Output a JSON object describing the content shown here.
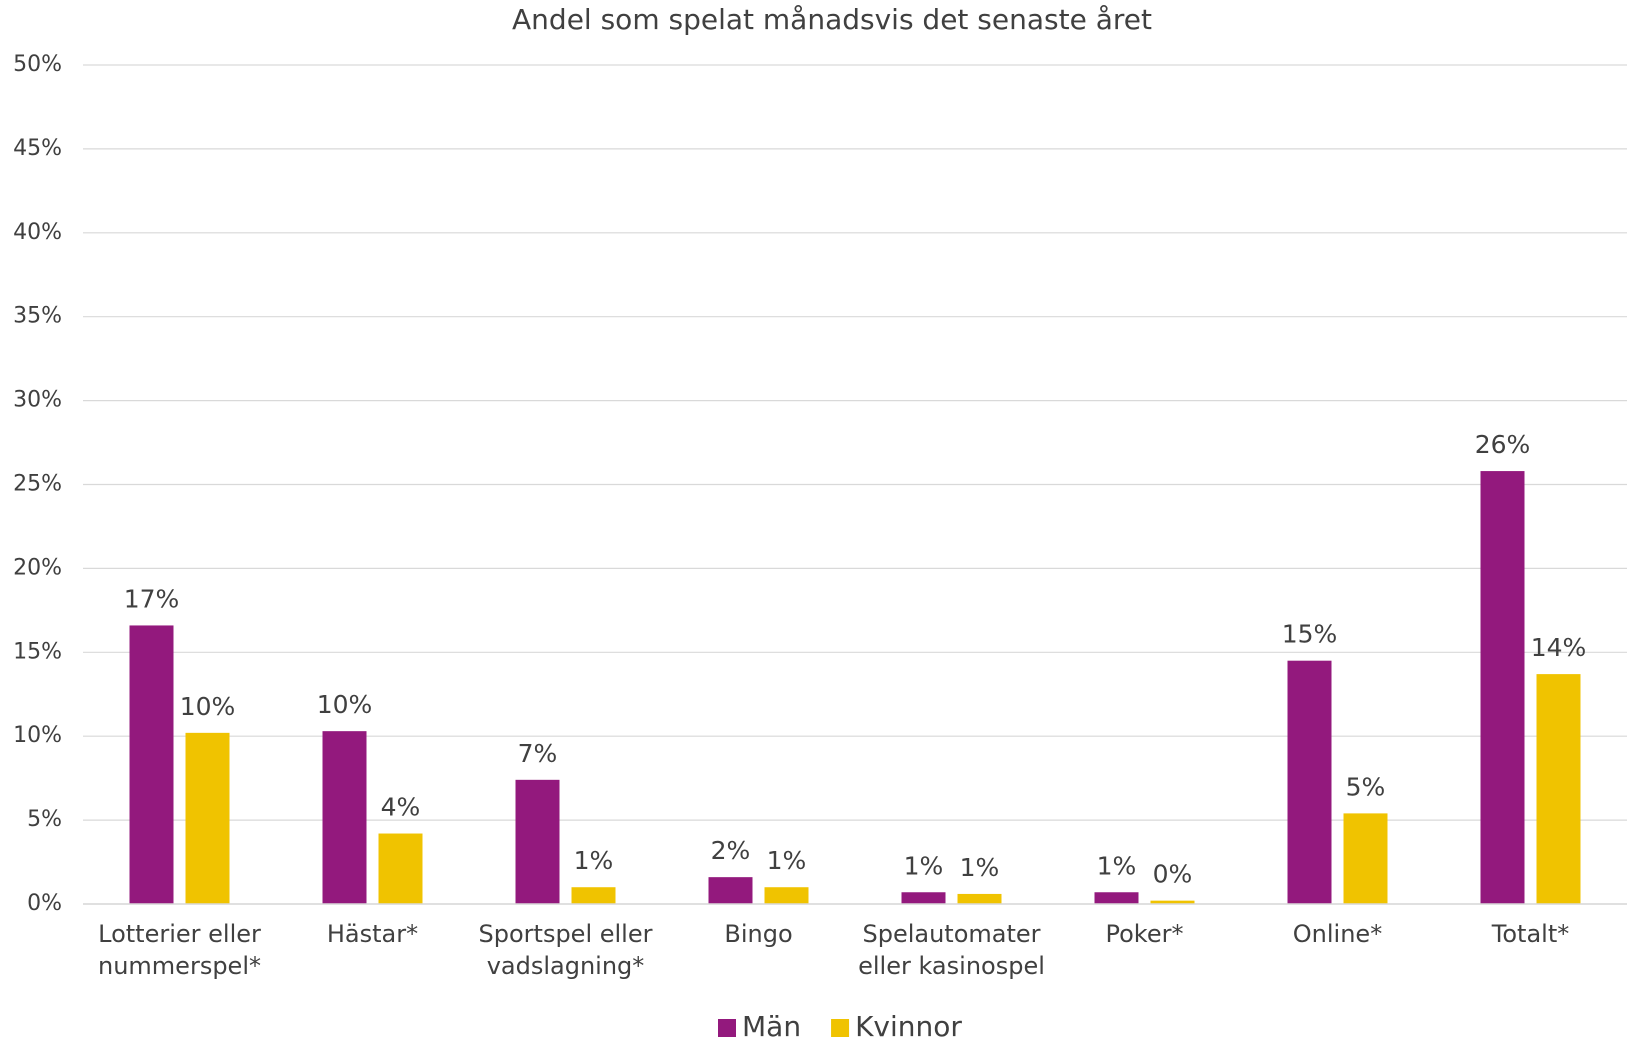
{
  "chart_data": {
    "type": "bar",
    "title": "Andel som spelat månadsvis det senaste året",
    "categories": [
      "Lotterier eller nummerspel*",
      "Hästar*",
      "Sportspel eller vadslagning*",
      "Bingo",
      "Spelautomater eller kasinospel",
      "Poker*",
      "Online*",
      "Totalt*"
    ],
    "series": [
      {
        "name": "Män",
        "color": "#93197d",
        "values": [
          16.6,
          10.3,
          7.4,
          1.6,
          0.7,
          0.7,
          14.5,
          25.8
        ],
        "value_labels": [
          "17%",
          "10%",
          "7%",
          "2%",
          "1%",
          "1%",
          "15%",
          "26%"
        ]
      },
      {
        "name": "Kvinnor",
        "color": "#f0c300",
        "values": [
          10.2,
          4.2,
          1.0,
          1.0,
          0.6,
          0.2,
          5.4,
          13.7
        ],
        "value_labels": [
          "10%",
          "4%",
          "1%",
          "1%",
          "1%",
          "0%",
          "5%",
          "14%"
        ]
      }
    ],
    "ylim": [
      0,
      50
    ],
    "yticks": [
      {
        "value": 0,
        "label": "0%"
      },
      {
        "value": 5,
        "label": "5%"
      },
      {
        "value": 10,
        "label": "10%"
      },
      {
        "value": 15,
        "label": "15%"
      },
      {
        "value": 20,
        "label": "20%"
      },
      {
        "value": 25,
        "label": "25%"
      },
      {
        "value": 30,
        "label": "30%"
      },
      {
        "value": 35,
        "label": "35%"
      },
      {
        "value": 40,
        "label": "40%"
      },
      {
        "value": 45,
        "label": "45%"
      },
      {
        "value": 50,
        "label": "50%"
      }
    ],
    "grid": true,
    "legend": "bottom"
  }
}
